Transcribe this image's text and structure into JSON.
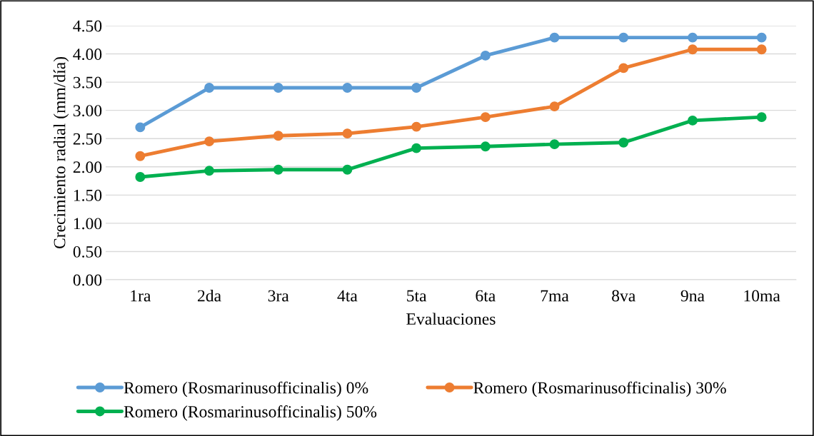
{
  "chart_data": {
    "type": "line",
    "xlabel": "Evaluaciones",
    "ylabel": "Crecimiento radial (mm/día)",
    "categories": [
      "1ra",
      "2da",
      "3ra",
      "4ta",
      "5ta",
      "6ta",
      "7ma",
      "8va",
      "9na",
      "10ma"
    ],
    "series": [
      {
        "name": "Romero (Rosmarinusofficinalis) 0%",
        "color": "#5b9bd5",
        "values": [
          2.7,
          3.4,
          3.4,
          3.4,
          3.4,
          3.97,
          4.29,
          4.29,
          4.29,
          4.29
        ]
      },
      {
        "name": "Romero (Rosmarinusofficinalis) 30%",
        "color": "#ed7d31",
        "values": [
          2.19,
          2.45,
          2.55,
          2.59,
          2.71,
          2.88,
          3.07,
          3.75,
          4.08,
          4.08
        ]
      },
      {
        "name": "Romero (Rosmarinusofficinalis) 50%",
        "color": "#00b050",
        "values": [
          1.82,
          1.93,
          1.95,
          1.95,
          2.33,
          2.36,
          2.4,
          2.43,
          2.82,
          2.88
        ]
      }
    ],
    "ylim": [
      0,
      4.5
    ],
    "yticks": [
      {
        "value": 0,
        "label": "0.00"
      },
      {
        "value": 0.5,
        "label": "0.50"
      },
      {
        "value": 1,
        "label": "1.00"
      },
      {
        "value": 1.5,
        "label": "1.50"
      },
      {
        "value": 2,
        "label": "2.00"
      },
      {
        "value": 2.5,
        "label": "2.50"
      },
      {
        "value": 3,
        "label": "3.00"
      },
      {
        "value": 3.5,
        "label": "3.50"
      },
      {
        "value": 4,
        "label": "4.00"
      },
      {
        "value": 4.5,
        "label": "4.50"
      }
    ],
    "grid": "y",
    "legend": "bottom",
    "marker": "circle",
    "line_style": "solid"
  }
}
